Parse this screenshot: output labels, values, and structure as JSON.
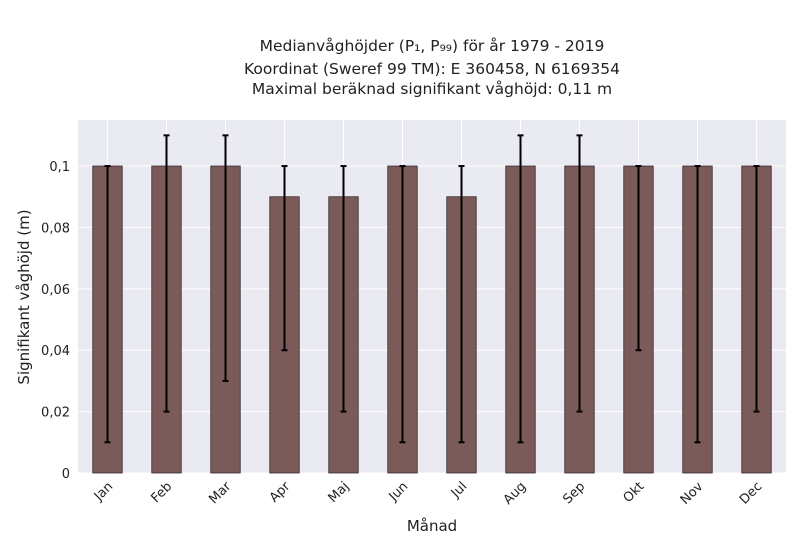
{
  "chart_data": {
    "type": "bar",
    "title_lines": [
      "Medianvåghöjder (P₁, P₉₉) för år 1979 - 2019",
      "Koordinat (Sweref 99 TM): E 360458, N 6169354",
      "Maximal beräknad signifikant våghöjd: 0,11 m"
    ],
    "xlabel": "Månad",
    "ylabel": "Signifikant våghöjd (m)",
    "categories": [
      "Jan",
      "Feb",
      "Mar",
      "Apr",
      "Maj",
      "Jun",
      "Jul",
      "Aug",
      "Sep",
      "Okt",
      "Nov",
      "Dec"
    ],
    "values": [
      0.1,
      0.1,
      0.1,
      0.09,
      0.09,
      0.1,
      0.09,
      0.1,
      0.1,
      0.1,
      0.1,
      0.1
    ],
    "error_low": [
      0.01,
      0.02,
      0.03,
      0.04,
      0.02,
      0.01,
      0.01,
      0.01,
      0.02,
      0.04,
      0.01,
      0.02
    ],
    "error_high": [
      0.1,
      0.11,
      0.11,
      0.1,
      0.1,
      0.1,
      0.1,
      0.11,
      0.11,
      0.1,
      0.1,
      0.1
    ],
    "ylim": [
      0,
      0.115
    ],
    "yticks": [
      0,
      0.02,
      0.04,
      0.06,
      0.08,
      0.1
    ],
    "ytick_labels": [
      "0",
      "0,02",
      "0,04",
      "0,06",
      "0,08",
      "0,1"
    ],
    "grid": true,
    "colors": {
      "bar": "#7b5a5a",
      "bar_edge": "#3a2a2a",
      "error": "#000000",
      "plot_background": "#eaeaf2",
      "grid": "#ffffff"
    }
  }
}
